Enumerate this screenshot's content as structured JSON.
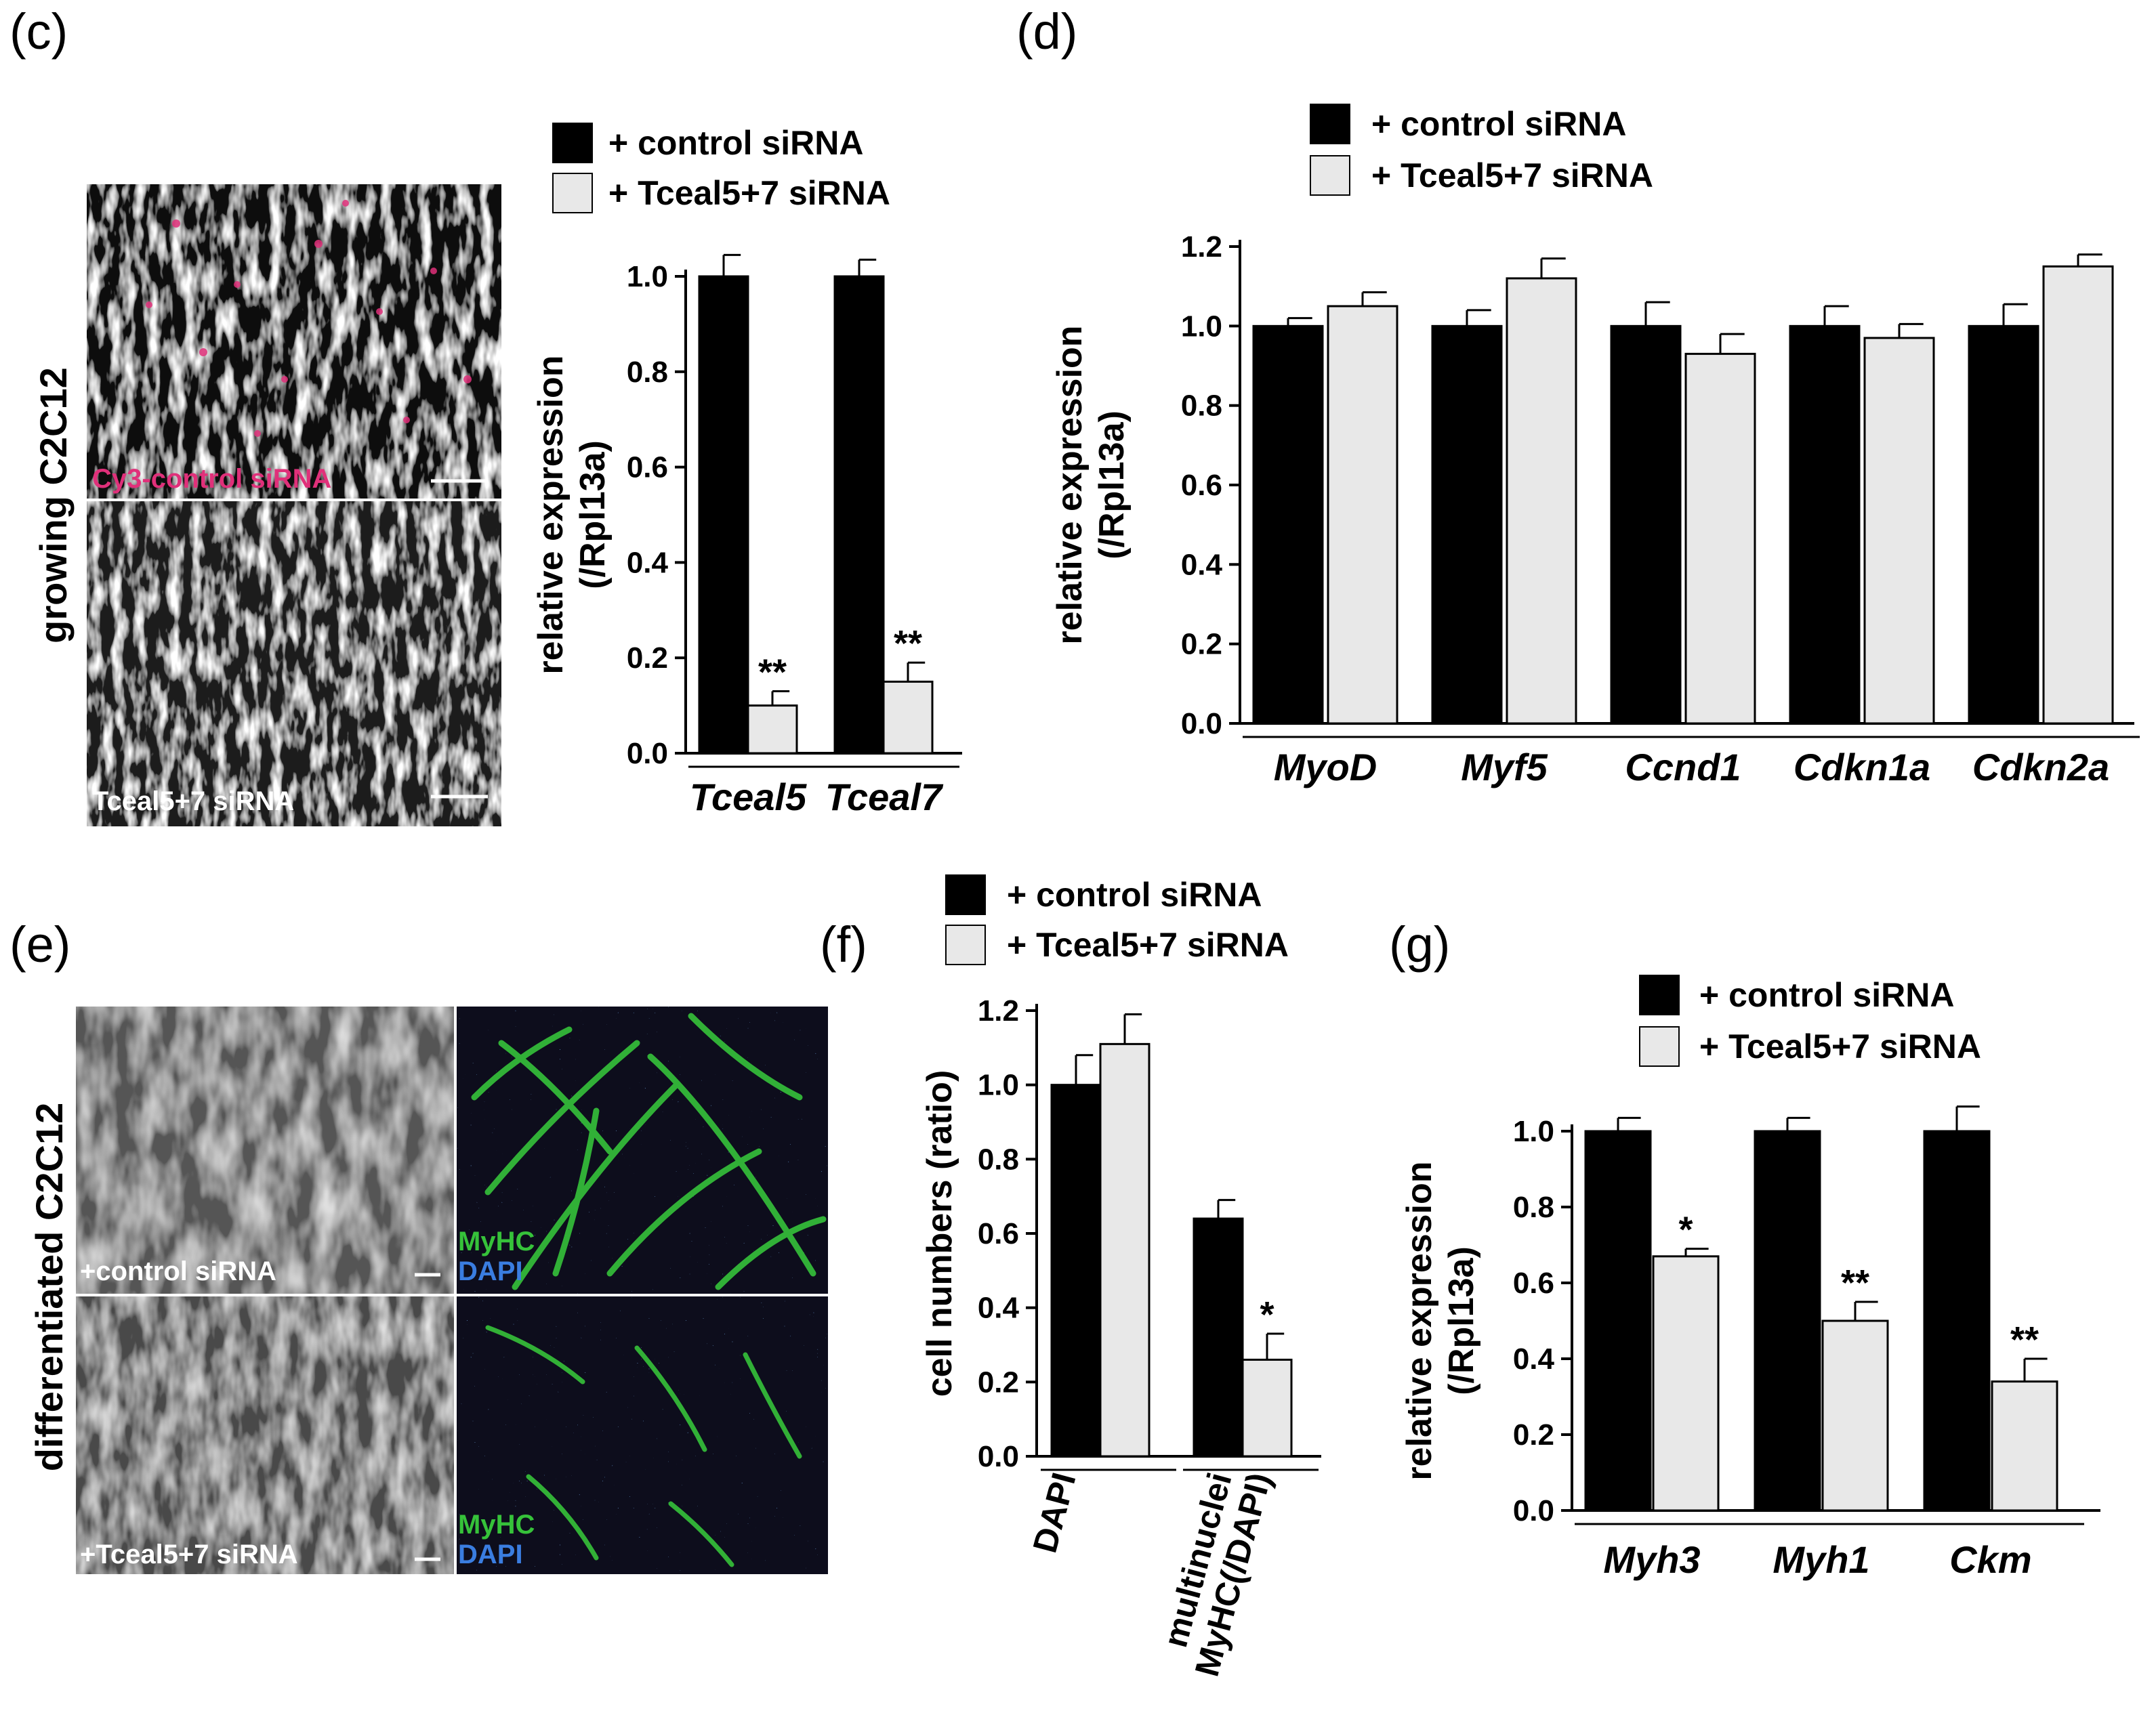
{
  "panels": {
    "c": "(c)",
    "d": "(d)",
    "e": "(e)",
    "f": "(f)",
    "g": "(g)"
  },
  "legend": {
    "control": "+ control siRNA",
    "tceal": "+ Tceal5+7 siRNA"
  },
  "colors": {
    "control": "#000000",
    "tceal": "#e8e8e8",
    "cy3": "#e0307a",
    "myhc": "#36c23a",
    "dapi": "#3a7de0"
  },
  "images": {
    "c_side_label": "growing C2C12",
    "c_top_label": "Cy3-control siRNA",
    "c_bottom_label": "Tceal5+7 siRNA",
    "e_side_label": "differentiated C2C12",
    "e_top_label": "+control siRNA",
    "e_bottom_label": "+Tceal5+7 siRNA",
    "myhc": "MyHC",
    "dapi": "DAPI"
  },
  "chart_data": [
    {
      "panel": "c",
      "type": "bar",
      "ylabel": "relative expression\n(/Rpl13a)",
      "ylim": [
        0,
        1.0
      ],
      "yticks": [
        "0.0",
        "0.2",
        "0.4",
        "0.6",
        "0.8",
        "1.0"
      ],
      "categories": [
        "Tceal5",
        "Tceal7"
      ],
      "series": [
        {
          "name": "+ control siRNA",
          "values": [
            1.0,
            1.0
          ],
          "errors": [
            0.045,
            0.035
          ]
        },
        {
          "name": "+ Tceal5+7 siRNA",
          "values": [
            0.1,
            0.15
          ],
          "errors": [
            0.03,
            0.04
          ]
        }
      ],
      "significance": [
        [
          "",
          "**"
        ],
        [
          "",
          "**"
        ]
      ]
    },
    {
      "panel": "d",
      "type": "bar",
      "ylabel": "relative expression\n(/Rpl13a)",
      "ylim": [
        0,
        1.2
      ],
      "yticks": [
        "0.0",
        "0.2",
        "0.4",
        "0.6",
        "0.8",
        "1.0",
        "1.2"
      ],
      "categories": [
        "MyoD",
        "Myf5",
        "Ccnd1",
        "Cdkn1a",
        "Cdkn2a"
      ],
      "series": [
        {
          "name": "+ control siRNA",
          "values": [
            1.0,
            1.0,
            1.0,
            1.0,
            1.0
          ],
          "errors": [
            0.02,
            0.04,
            0.06,
            0.05,
            0.055
          ]
        },
        {
          "name": "+ Tceal5+7 siRNA",
          "values": [
            1.05,
            1.12,
            0.93,
            0.97,
            1.15
          ],
          "errors": [
            0.035,
            0.05,
            0.05,
            0.035,
            0.03
          ]
        }
      ]
    },
    {
      "panel": "f",
      "type": "bar",
      "ylabel": "cell numbers (ratio)",
      "ylim": [
        0,
        1.2
      ],
      "yticks": [
        "0.0",
        "0.2",
        "0.4",
        "0.6",
        "0.8",
        "1.0",
        "1.2"
      ],
      "categories": [
        "DAPI",
        "multinuclei\nMyHC(/DAPI)"
      ],
      "series": [
        {
          "name": "+ control siRNA",
          "values": [
            1.0,
            0.64
          ],
          "errors": [
            0.08,
            0.05
          ]
        },
        {
          "name": "+ Tceal5+7 siRNA",
          "values": [
            1.11,
            0.26
          ],
          "errors": [
            0.08,
            0.07
          ]
        }
      ],
      "significance": [
        [
          "",
          ""
        ],
        [
          "",
          "*"
        ]
      ]
    },
    {
      "panel": "g",
      "type": "bar",
      "ylabel": "relative expression\n(/Rpl13a)",
      "ylim": [
        0,
        1.0
      ],
      "yticks": [
        "0.0",
        "0.2",
        "0.4",
        "0.6",
        "0.8",
        "1.0"
      ],
      "categories": [
        "Myh3",
        "Myh1",
        "Ckm"
      ],
      "series": [
        {
          "name": "+ control siRNA",
          "values": [
            1.0,
            1.0,
            1.0
          ],
          "errors": [
            0.035,
            0.035,
            0.065
          ]
        },
        {
          "name": "+ Tceal5+7 siRNA",
          "values": [
            0.67,
            0.5,
            0.34
          ],
          "errors": [
            0.02,
            0.05,
            0.06
          ]
        }
      ],
      "significance": [
        [
          "",
          "*"
        ],
        [
          "",
          "**"
        ],
        [
          "",
          "**"
        ]
      ]
    }
  ]
}
